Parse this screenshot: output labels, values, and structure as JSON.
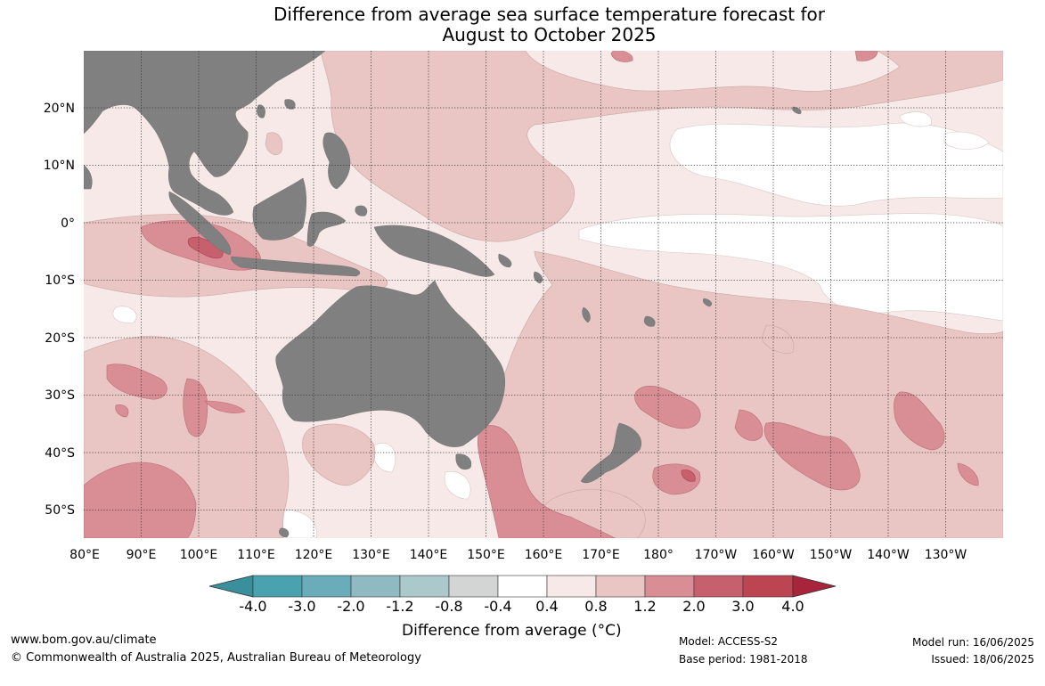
{
  "title": {
    "line1": "Difference from average sea surface temperature forecast for",
    "line2": "August to October 2025"
  },
  "latitude_labels": [
    "20°N",
    "10°N",
    "0°",
    "10°S",
    "20°S",
    "30°S",
    "40°S",
    "50°S"
  ],
  "longitude_labels": [
    "80°E",
    "90°E",
    "100°E",
    "110°E",
    "120°E",
    "130°E",
    "140°E",
    "150°E",
    "160°E",
    "170°E",
    "180°",
    "170°W",
    "160°W",
    "150°W",
    "140°W",
    "130°W"
  ],
  "colorbar": {
    "title": "Difference from average (°C)",
    "tick_labels": [
      "-4.0",
      "-3.0",
      "-2.0",
      "-1.2",
      "-0.8",
      "-0.4",
      "0.4",
      "0.8",
      "1.2",
      "2.0",
      "3.0",
      "4.0"
    ],
    "colors": [
      "#3a8f9c",
      "#4aa2b1",
      "#6aacba",
      "#8fbac2",
      "#abc8cb",
      "#d3d4d4",
      "#ffffff",
      "#f6e9e8",
      "#e9c6c3",
      "#d98e96",
      "#c7606d",
      "#bd4552",
      "#a8243a"
    ]
  },
  "land_color": "#808080",
  "footer": {
    "website": "www.bom.gov.au/climate",
    "copyright": "© Commonwealth of Australia 2025, Australian Bureau of Meteorology",
    "model": "Model: ACCESS-S2",
    "base_period": "Base period: 1981-2018",
    "model_run": "Model run: 16/06/2025",
    "issued": "Issued: 18/06/2025"
  }
}
